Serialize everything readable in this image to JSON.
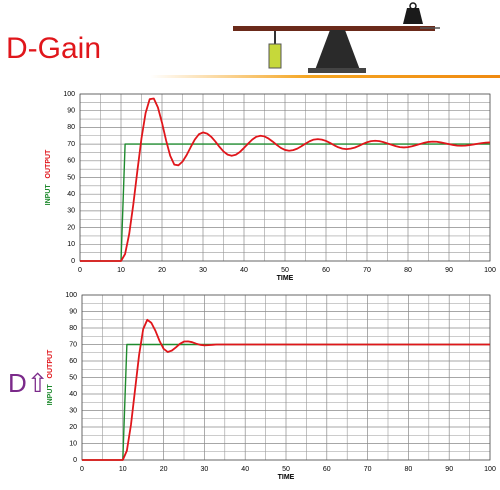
{
  "slide": {
    "title": "D-Gain",
    "note": "D⇧"
  },
  "chart_data": [
    {
      "type": "line",
      "xlabel": "TIME",
      "x": [
        0,
        1,
        2,
        3,
        4,
        5,
        6,
        7,
        8,
        9,
        10,
        11,
        12,
        13,
        14,
        15,
        16,
        17,
        18,
        19,
        20,
        21,
        22,
        23,
        24,
        25,
        26,
        27,
        28,
        29,
        30,
        31,
        32,
        33,
        34,
        35,
        36,
        37,
        38,
        39,
        40,
        41,
        42,
        43,
        44,
        45,
        46,
        47,
        48,
        49,
        50,
        51,
        52,
        53,
        54,
        55,
        56,
        57,
        58,
        59,
        60,
        61,
        62,
        63,
        64,
        65,
        66,
        67,
        68,
        69,
        70,
        71,
        72,
        73,
        74,
        75,
        76,
        77,
        78,
        79,
        80,
        81,
        82,
        83,
        84,
        85,
        86,
        87,
        88,
        89,
        90,
        91,
        92,
        93,
        94,
        95,
        96,
        97,
        98,
        99,
        100
      ],
      "xlim": [
        0,
        100
      ],
      "xticks": [
        0,
        10,
        20,
        30,
        40,
        50,
        60,
        70,
        80,
        90,
        100
      ],
      "ylim": [
        0,
        100
      ],
      "yticks": [
        0,
        10,
        20,
        30,
        40,
        50,
        60,
        70,
        80,
        90,
        100
      ],
      "grid": true,
      "series": [
        {
          "name": "INPUT",
          "color": "#1f8a2e",
          "values": [
            0,
            0,
            0,
            0,
            0,
            0,
            0,
            0,
            0,
            0,
            0,
            70,
            70,
            70,
            70,
            70,
            70,
            70,
            70,
            70,
            70,
            70,
            70,
            70,
            70,
            70,
            70,
            70,
            70,
            70,
            70,
            70,
            70,
            70,
            70,
            70,
            70,
            70,
            70,
            70,
            70,
            70,
            70,
            70,
            70,
            70,
            70,
            70,
            70,
            70,
            70,
            70,
            70,
            70,
            70,
            70,
            70,
            70,
            70,
            70,
            70,
            70,
            70,
            70,
            70,
            70,
            70,
            70,
            70,
            70,
            70,
            70,
            70,
            70,
            70,
            70,
            70,
            70,
            70,
            70,
            70,
            70,
            70,
            70,
            70,
            70,
            70,
            70,
            70,
            70,
            70,
            70,
            70,
            70,
            70,
            70,
            70,
            70,
            70,
            70,
            70
          ]
        },
        {
          "name": "OUTPUT",
          "color": "#e0161b",
          "values": [
            0,
            0,
            0,
            0,
            0,
            0,
            0,
            0,
            0,
            0,
            0,
            4.2,
            16.2,
            33.8,
            54.1,
            73.5,
            88.6,
            96.9,
            97.3,
            92.0,
            82.8,
            72.2,
            63.0,
            57.7,
            57.3,
            59.5,
            63.4,
            68.2,
            72.7,
            75.9,
            77,
            76.3,
            74.4,
            71.6,
            68.4,
            65.6,
            63.7,
            63,
            63.6,
            65.3,
            67.7,
            70.3,
            72.7,
            74.4,
            75,
            74.6,
            73.3,
            71.5,
            69.5,
            67.7,
            66.5,
            66,
            66.4,
            67.3,
            68.7,
            70.3,
            71.7,
            72.7,
            73,
            72.7,
            71.9,
            70.7,
            69.3,
            68.1,
            67.3,
            67,
            67.3,
            67.9,
            68.9,
            70.1,
            71.1,
            71.8,
            72,
            71.8,
            71.2,
            70.4,
            69.6,
            68.8,
            68.2,
            68,
            68.2,
            68.7,
            69.4,
            70.1,
            70.8,
            71.3,
            71.5,
            71.4,
            71,
            70.5,
            70,
            69.5,
            69.1,
            69,
            69.1,
            69.4,
            69.8,
            70.2,
            70.6,
            70.9,
            71
          ]
        }
      ]
    },
    {
      "type": "line",
      "xlabel": "TIME",
      "x": [
        0,
        1,
        2,
        3,
        4,
        5,
        6,
        7,
        8,
        9,
        10,
        11,
        12,
        13,
        14,
        15,
        16,
        17,
        18,
        19,
        20,
        21,
        22,
        23,
        24,
        25,
        26,
        27,
        28,
        29,
        30,
        31,
        32,
        33,
        34,
        35,
        36,
        37,
        38,
        39,
        40,
        41,
        42,
        43,
        44,
        45,
        46,
        47,
        48,
        49,
        50,
        51,
        52,
        53,
        54,
        55,
        56,
        57,
        58,
        59,
        60,
        61,
        62,
        63,
        64,
        65,
        66,
        67,
        68,
        69,
        70,
        71,
        72,
        73,
        74,
        75,
        76,
        77,
        78,
        79,
        80,
        81,
        82,
        83,
        84,
        85,
        86,
        87,
        88,
        89,
        90,
        91,
        92,
        93,
        94,
        95,
        96,
        97,
        98,
        99,
        100
      ],
      "xlim": [
        0,
        100
      ],
      "xticks": [
        0,
        10,
        20,
        30,
        40,
        50,
        60,
        70,
        80,
        90,
        100
      ],
      "ylim": [
        0,
        100
      ],
      "yticks": [
        0,
        10,
        20,
        30,
        40,
        50,
        60,
        70,
        80,
        90,
        100
      ],
      "grid": true,
      "series": [
        {
          "name": "INPUT",
          "color": "#1f8a2e",
          "values": [
            0,
            0,
            0,
            0,
            0,
            0,
            0,
            0,
            0,
            0,
            0,
            70,
            70,
            70,
            70,
            70,
            70,
            70,
            70,
            70,
            70,
            70,
            70,
            70,
            70,
            70,
            70,
            70,
            70,
            70,
            70,
            70,
            70,
            70,
            70,
            70,
            70,
            70,
            70,
            70,
            70,
            70,
            70,
            70,
            70,
            70,
            70,
            70,
            70,
            70,
            70,
            70,
            70,
            70,
            70,
            70,
            70,
            70,
            70,
            70,
            70,
            70,
            70,
            70,
            70,
            70,
            70,
            70,
            70,
            70,
            70,
            70,
            70,
            70,
            70,
            70,
            70,
            70,
            70,
            70,
            70,
            70,
            70,
            70,
            70,
            70,
            70,
            70,
            70,
            70,
            70,
            70,
            70,
            70,
            70,
            70,
            70,
            70,
            70,
            70,
            70
          ]
        },
        {
          "name": "OUTPUT",
          "color": "#e0161b",
          "values": [
            0,
            0,
            0,
            0,
            0,
            0,
            0,
            0,
            0,
            0,
            0,
            5.7,
            21.3,
            42.5,
            63.8,
            79.3,
            85,
            83.1,
            78.3,
            72.2,
            67.4,
            65.5,
            66.3,
            68.2,
            70.4,
            71.8,
            71.9,
            71.4,
            70.5,
            69.8,
            69.5,
            69.6,
            69.8,
            70,
            70,
            70,
            70,
            70,
            70,
            70,
            70,
            70,
            70,
            70,
            70,
            70,
            70,
            70,
            70,
            70,
            70,
            70,
            70,
            70,
            70,
            70,
            70,
            70,
            70,
            70,
            70,
            70,
            70,
            70,
            70,
            70,
            70,
            70,
            70,
            70,
            70,
            70,
            70,
            70,
            70,
            70,
            70,
            70,
            70,
            70,
            70,
            70,
            70,
            70,
            70,
            70,
            70,
            70,
            70,
            70,
            70,
            70,
            70,
            70,
            70,
            70,
            70,
            70,
            70,
            70,
            70
          ]
        }
      ]
    }
  ]
}
